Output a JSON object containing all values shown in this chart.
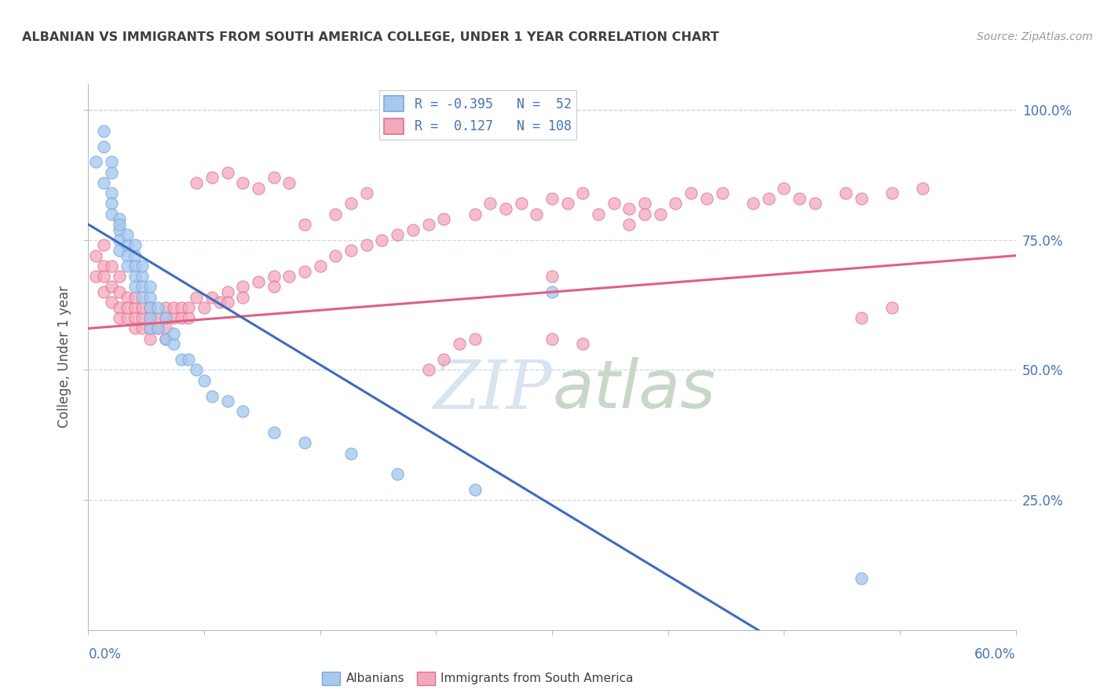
{
  "title": "ALBANIAN VS IMMIGRANTS FROM SOUTH AMERICA COLLEGE, UNDER 1 YEAR CORRELATION CHART",
  "source": "Source: ZipAtlas.com",
  "ylabel": "College, Under 1 year",
  "legend_albanians": "Albanians",
  "legend_immigrants": "Immigrants from South America",
  "R_albanians": -0.395,
  "N_albanians": 52,
  "R_immigrants": 0.127,
  "N_immigrants": 108,
  "color_blue_fill": "#A8C8F0",
  "color_blue_edge": "#7AAAD8",
  "color_blue_line": "#3B6CC4",
  "color_pink_fill": "#F4A8BC",
  "color_pink_edge": "#E07090",
  "color_pink_line": "#E06080",
  "color_text_blue": "#4472C4",
  "color_title": "#404040",
  "color_source": "#999999",
  "color_grid": "#C8D8E8",
  "watermark_text": "ZIPatlas",
  "watermark_color": "#D8E4F0",
  "albanians_x": [
    0.005,
    0.01,
    0.01,
    0.01,
    0.015,
    0.015,
    0.015,
    0.015,
    0.015,
    0.02,
    0.02,
    0.02,
    0.02,
    0.02,
    0.025,
    0.025,
    0.025,
    0.025,
    0.03,
    0.03,
    0.03,
    0.03,
    0.03,
    0.035,
    0.035,
    0.035,
    0.035,
    0.04,
    0.04,
    0.04,
    0.04,
    0.04,
    0.045,
    0.045,
    0.05,
    0.05,
    0.055,
    0.055,
    0.06,
    0.065,
    0.07,
    0.075,
    0.08,
    0.09,
    0.1,
    0.12,
    0.14,
    0.17,
    0.2,
    0.25,
    0.3,
    0.5
  ],
  "albanians_y": [
    0.9,
    0.93,
    0.96,
    0.86,
    0.88,
    0.9,
    0.84,
    0.82,
    0.8,
    0.79,
    0.77,
    0.75,
    0.78,
    0.73,
    0.74,
    0.76,
    0.72,
    0.7,
    0.72,
    0.74,
    0.7,
    0.68,
    0.66,
    0.68,
    0.7,
    0.66,
    0.64,
    0.64,
    0.66,
    0.62,
    0.6,
    0.58,
    0.62,
    0.58,
    0.56,
    0.6,
    0.55,
    0.57,
    0.52,
    0.52,
    0.5,
    0.48,
    0.45,
    0.44,
    0.42,
    0.38,
    0.36,
    0.34,
    0.3,
    0.27,
    0.65,
    0.1
  ],
  "immigrants_x": [
    0.005,
    0.005,
    0.01,
    0.01,
    0.01,
    0.01,
    0.015,
    0.015,
    0.015,
    0.02,
    0.02,
    0.02,
    0.02,
    0.025,
    0.025,
    0.025,
    0.03,
    0.03,
    0.03,
    0.03,
    0.035,
    0.035,
    0.035,
    0.04,
    0.04,
    0.04,
    0.04,
    0.045,
    0.045,
    0.05,
    0.05,
    0.05,
    0.05,
    0.055,
    0.055,
    0.06,
    0.06,
    0.065,
    0.065,
    0.07,
    0.075,
    0.08,
    0.085,
    0.09,
    0.09,
    0.1,
    0.1,
    0.11,
    0.12,
    0.12,
    0.13,
    0.14,
    0.15,
    0.16,
    0.17,
    0.18,
    0.19,
    0.2,
    0.21,
    0.22,
    0.23,
    0.25,
    0.26,
    0.27,
    0.28,
    0.29,
    0.3,
    0.31,
    0.32,
    0.33,
    0.34,
    0.35,
    0.36,
    0.37,
    0.38,
    0.39,
    0.4,
    0.41,
    0.43,
    0.44,
    0.45,
    0.46,
    0.47,
    0.49,
    0.5,
    0.52,
    0.54,
    0.3,
    0.32,
    0.22,
    0.23,
    0.24,
    0.25,
    0.14,
    0.16,
    0.17,
    0.18,
    0.07,
    0.08,
    0.09,
    0.1,
    0.11,
    0.12,
    0.13,
    0.35,
    0.36,
    0.5,
    0.52,
    0.3
  ],
  "immigrants_y": [
    0.68,
    0.72,
    0.65,
    0.7,
    0.74,
    0.68,
    0.66,
    0.7,
    0.63,
    0.65,
    0.68,
    0.62,
    0.6,
    0.64,
    0.6,
    0.62,
    0.62,
    0.64,
    0.6,
    0.58,
    0.6,
    0.62,
    0.58,
    0.6,
    0.62,
    0.58,
    0.56,
    0.6,
    0.58,
    0.62,
    0.6,
    0.58,
    0.56,
    0.6,
    0.62,
    0.62,
    0.6,
    0.62,
    0.6,
    0.64,
    0.62,
    0.64,
    0.63,
    0.65,
    0.63,
    0.66,
    0.64,
    0.67,
    0.68,
    0.66,
    0.68,
    0.69,
    0.7,
    0.72,
    0.73,
    0.74,
    0.75,
    0.76,
    0.77,
    0.78,
    0.79,
    0.8,
    0.82,
    0.81,
    0.82,
    0.8,
    0.83,
    0.82,
    0.84,
    0.8,
    0.82,
    0.81,
    0.82,
    0.8,
    0.82,
    0.84,
    0.83,
    0.84,
    0.82,
    0.83,
    0.85,
    0.83,
    0.82,
    0.84,
    0.83,
    0.84,
    0.85,
    0.56,
    0.55,
    0.5,
    0.52,
    0.55,
    0.56,
    0.78,
    0.8,
    0.82,
    0.84,
    0.86,
    0.87,
    0.88,
    0.86,
    0.85,
    0.87,
    0.86,
    0.78,
    0.8,
    0.6,
    0.62,
    0.68
  ],
  "xlim": [
    0.0,
    0.6
  ],
  "ylim": [
    0.0,
    1.05
  ],
  "y_tick_values": [
    0.25,
    0.5,
    0.75,
    1.0
  ],
  "x_tick_values": [
    0.0,
    0.075,
    0.15,
    0.225,
    0.3,
    0.375,
    0.45,
    0.525,
    0.6
  ],
  "figsize": [
    14.06,
    8.92
  ],
  "dpi": 100
}
